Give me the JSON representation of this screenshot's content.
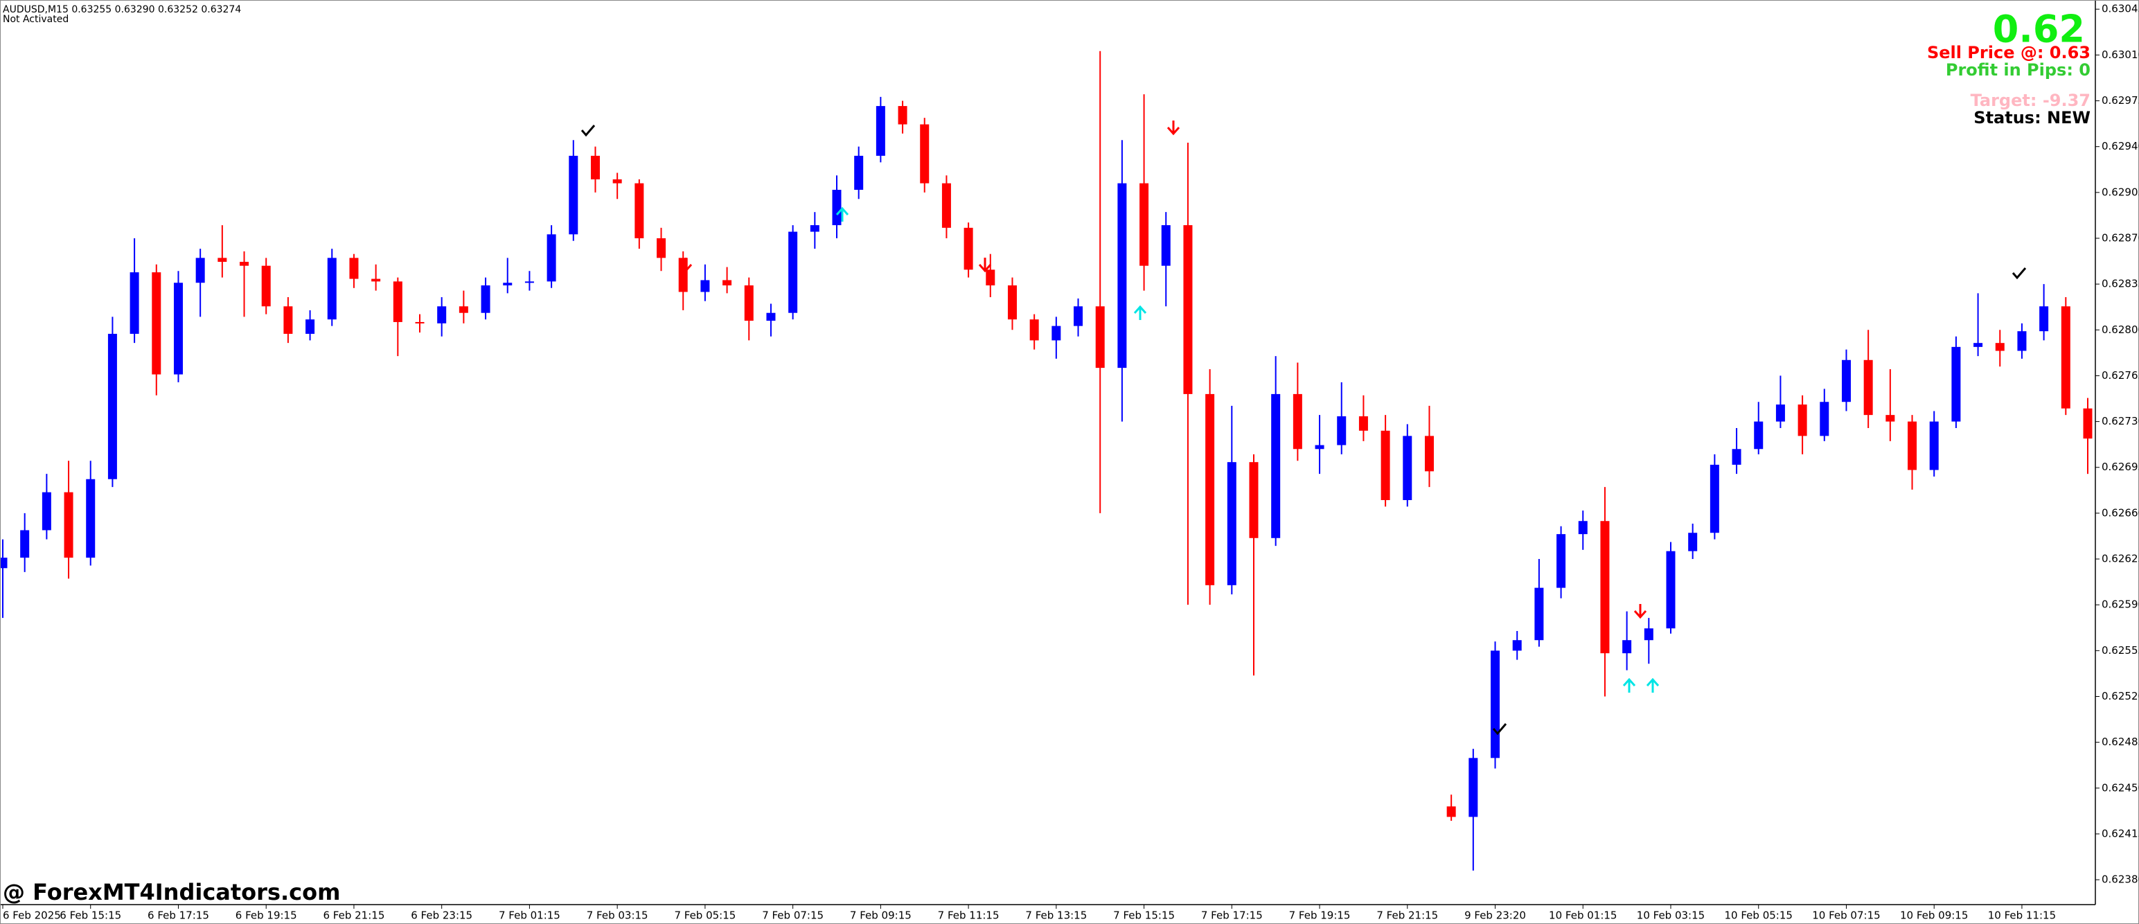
{
  "header": {
    "symbol": "AUDUSD,M15  0.63255 0.63290 0.63252 0.63274",
    "status": "Not Activated"
  },
  "panel": {
    "price": "0.62",
    "sell": "Sell Price @: 0.63",
    "profit": "Profit in Pips: 0",
    "target": "Target: -9.37",
    "state": "Status: NEW"
  },
  "watermark": "@ ForexMT4Indicators.com",
  "chart_data": {
    "type": "candlestick",
    "up_color": "#0000ff",
    "down_color": "#ff0000",
    "ylim": [
      0.62361,
      0.63052
    ],
    "yticks": [
      0.63045,
      {
        "value": 0.6301,
        "label": "0.63010"
      },
      0.62975,
      {
        "value": 0.6294,
        "label": "0.62940"
      },
      0.62905,
      {
        "value": 0.6287,
        "label": "0.62870"
      },
      0.62835,
      {
        "value": 0.628,
        "label": "0.62800"
      },
      0.62765,
      {
        "value": 0.6273,
        "label": "0.62730"
      },
      0.62695,
      {
        "value": 0.6266,
        "label": "0.62660"
      },
      0.62625,
      {
        "value": 0.6259,
        "label": "0.62590"
      },
      0.62555,
      {
        "value": 0.6252,
        "label": "0.62520"
      },
      0.62485,
      {
        "value": 0.6245,
        "label": "0.62450"
      },
      0.62415,
      {
        "value": 0.6238,
        "label": "0.62380"
      }
    ],
    "categories": [
      "6 Feb 2025",
      null,
      null,
      null,
      "6 Feb 15:15",
      null,
      null,
      null,
      "6 Feb 17:15",
      null,
      null,
      null,
      "6 Feb 19:15",
      null,
      null,
      null,
      "6 Feb 21:15",
      null,
      null,
      null,
      "6 Feb 23:15",
      null,
      null,
      null,
      "7 Feb 01:15",
      null,
      null,
      null,
      "7 Feb 03:15",
      null,
      null,
      null,
      "7 Feb 05:15",
      null,
      null,
      null,
      "7 Feb 07:15",
      null,
      null,
      null,
      "7 Feb 09:15",
      null,
      null,
      null,
      "7 Feb 11:15",
      null,
      null,
      null,
      "7 Feb 13:15",
      null,
      null,
      null,
      "7 Feb 15:15",
      null,
      null,
      null,
      "7 Feb 17:15",
      null,
      null,
      null,
      "7 Feb 19:15",
      null,
      null,
      null,
      "7 Feb 21:15",
      null,
      null,
      null,
      "9 Feb 23:20",
      null,
      null,
      null,
      "10 Feb 01:15",
      null,
      null,
      null,
      "10 Feb 03:15",
      null,
      null,
      null,
      "10 Feb 05:15",
      null,
      null,
      null,
      "10 Feb 07:15",
      null,
      null,
      null,
      "10 Feb 09:15",
      null,
      null,
      null,
      "10 Feb 11:15",
      null,
      null,
      null
    ],
    "open": [
      0.62618,
      0.62626,
      0.62647,
      0.62676,
      0.62626,
      0.62686,
      0.62797,
      0.62844,
      0.62766,
      0.62836,
      0.62855,
      0.62852,
      0.62849,
      0.62818,
      0.62797,
      0.62808,
      0.62855,
      0.62839,
      0.62837,
      0.62806,
      0.62805,
      0.62818,
      0.62813,
      0.62834,
      0.62836,
      0.62837,
      0.62873,
      0.62933,
      0.62915,
      0.62912,
      0.6287,
      0.62855,
      0.62829,
      0.62838,
      0.62834,
      0.62807,
      0.62813,
      0.62875,
      0.6288,
      0.62907,
      0.62933,
      0.62971,
      0.62957,
      0.62912,
      0.62878,
      0.62846,
      0.62834,
      0.62808,
      0.62792,
      0.62803,
      0.62818,
      0.62771,
      0.62912,
      0.62849,
      0.6288,
      0.62751,
      0.62605,
      0.62699,
      0.62641,
      0.62751,
      0.62709,
      0.62712,
      0.62734,
      0.62723,
      0.6267,
      0.62719,
      0.62436,
      0.62428,
      0.62473,
      0.62555,
      0.62563,
      0.62603,
      0.62644,
      0.62654,
      0.62553,
      0.62563,
      0.62572,
      0.62631,
      0.62645,
      0.62697,
      0.62709,
      0.6273,
      0.62743,
      0.62719,
      0.62745,
      0.62777,
      0.62735,
      0.6273,
      0.62693,
      0.6273,
      0.62787,
      0.6279,
      0.62784,
      0.62799,
      0.62818,
      0.6274
    ],
    "close": [
      0.62626,
      0.62647,
      0.62676,
      0.62626,
      0.62686,
      0.62797,
      0.62844,
      0.62766,
      0.62836,
      0.62855,
      0.62852,
      0.62849,
      0.62818,
      0.62797,
      0.62808,
      0.62855,
      0.62839,
      0.62837,
      0.62806,
      0.62805,
      0.62818,
      0.62813,
      0.62834,
      0.62836,
      0.62837,
      0.62873,
      0.62933,
      0.62915,
      0.62912,
      0.6287,
      0.62855,
      0.62829,
      0.62838,
      0.62834,
      0.62807,
      0.62813,
      0.62875,
      0.6288,
      0.62907,
      0.62933,
      0.62971,
      0.62957,
      0.62912,
      0.62878,
      0.62846,
      0.62834,
      0.62808,
      0.62792,
      0.62803,
      0.62818,
      0.62771,
      0.62912,
      0.62849,
      0.6288,
      0.62751,
      0.62605,
      0.62699,
      0.62641,
      0.62751,
      0.62709,
      0.62712,
      0.62734,
      0.62723,
      0.6267,
      0.62719,
      0.62692,
      0.62428,
      0.62473,
      0.62555,
      0.62563,
      0.62603,
      0.62644,
      0.62654,
      0.62553,
      0.62563,
      0.62572,
      0.62631,
      0.62645,
      0.62697,
      0.62709,
      0.6273,
      0.62743,
      0.62719,
      0.62745,
      0.62777,
      0.62735,
      0.6273,
      0.62693,
      0.6273,
      0.62787,
      0.6279,
      0.62784,
      0.62799,
      0.62818,
      0.6274,
      0.62717
    ],
    "high": [
      0.6264,
      0.6266,
      0.6269,
      0.627,
      0.627,
      0.6281,
      0.6287,
      0.6285,
      0.62845,
      0.62862,
      0.6288,
      0.6286,
      0.62855,
      0.62825,
      0.62815,
      0.62862,
      0.62858,
      0.6285,
      0.6284,
      0.62812,
      0.62825,
      0.6283,
      0.6284,
      0.62855,
      0.62845,
      0.6288,
      0.62945,
      0.6294,
      0.6292,
      0.62915,
      0.62878,
      0.6286,
      0.6285,
      0.62848,
      0.6284,
      0.6282,
      0.6288,
      0.6289,
      0.62918,
      0.6294,
      0.62978,
      0.62975,
      0.62962,
      0.62918,
      0.62882,
      0.62858,
      0.6284,
      0.62812,
      0.6281,
      0.62824,
      0.63013,
      0.62945,
      0.6298,
      0.6289,
      0.62943,
      0.6277,
      0.62742,
      0.62705,
      0.6278,
      0.62775,
      0.62735,
      0.6276,
      0.6275,
      0.62735,
      0.62728,
      0.62742,
      0.62445,
      0.6248,
      0.62562,
      0.6257,
      0.62625,
      0.6265,
      0.62662,
      0.6268,
      0.62585,
      0.6258,
      0.62638,
      0.62652,
      0.62705,
      0.62725,
      0.62745,
      0.62765,
      0.6275,
      0.62755,
      0.62785,
      0.628,
      0.6277,
      0.62735,
      0.62738,
      0.62795,
      0.62828,
      0.628,
      0.62805,
      0.62835,
      0.62825,
      0.62748
    ],
    "low": [
      0.6258,
      0.62615,
      0.6264,
      0.6261,
      0.6262,
      0.6268,
      0.6279,
      0.6275,
      0.6276,
      0.6281,
      0.6284,
      0.6281,
      0.62812,
      0.6279,
      0.62792,
      0.62803,
      0.62832,
      0.6283,
      0.6278,
      0.62798,
      0.62795,
      0.62805,
      0.62808,
      0.62828,
      0.6283,
      0.62832,
      0.62868,
      0.62905,
      0.629,
      0.62862,
      0.62845,
      0.62815,
      0.62822,
      0.62828,
      0.62792,
      0.62795,
      0.62808,
      0.62862,
      0.6287,
      0.629,
      0.62928,
      0.6295,
      0.62905,
      0.6287,
      0.6284,
      0.62825,
      0.628,
      0.62785,
      0.62778,
      0.62795,
      0.6266,
      0.6273,
      0.6283,
      0.62818,
      0.6259,
      0.6259,
      0.62598,
      0.62536,
      0.62635,
      0.627,
      0.6269,
      0.62705,
      0.62715,
      0.62665,
      0.62665,
      0.6268,
      0.62425,
      0.62387,
      0.62465,
      0.62548,
      0.62558,
      0.62595,
      0.62632,
      0.6252,
      0.6254,
      0.62545,
      0.62568,
      0.62625,
      0.6264,
      0.6269,
      0.62705,
      0.62725,
      0.62705,
      0.62715,
      0.62738,
      0.62725,
      0.62715,
      0.62678,
      0.62688,
      0.62725,
      0.6278,
      0.62772,
      0.62778,
      0.62792,
      0.62735,
      0.6269
    ]
  }
}
